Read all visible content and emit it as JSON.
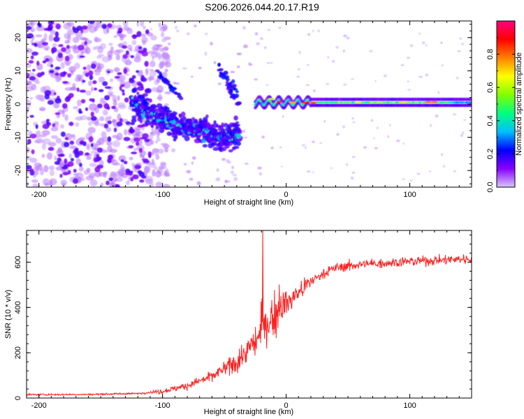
{
  "title": "S206.2026.044.20.17.R19",
  "chart_data": [
    {
      "type": "heatmap",
      "xlabel": "Height of straight line (km)",
      "ylabel": "Frequency (Hz)",
      "xlim": [
        -210,
        150
      ],
      "ylim": [
        -25,
        25
      ],
      "x_ticks": [
        -200,
        -100,
        0,
        100
      ],
      "y_ticks": [
        -20,
        -10,
        0,
        10,
        20
      ],
      "colorbar": {
        "label": "Normalized spectral amplitude",
        "range": [
          0,
          1
        ],
        "ticks": [
          "0.0",
          "0.2",
          "0.4",
          "0.6",
          "0.8"
        ],
        "colors": [
          "#d8c8ff",
          "#8800ff",
          "#0000ff",
          "#00c0ff",
          "#00ff80",
          "#80ff00",
          "#ffff00",
          "#ff8000",
          "#ff0000",
          "#ff0080"
        ]
      },
      "features": {
        "noise_region_km": [
          -210,
          -110
        ],
        "descending_trace": {
          "x": [
            -125,
            -110,
            -90,
            -70,
            -50,
            -38
          ],
          "y": [
            1,
            -3,
            -6,
            -8,
            -10,
            -9
          ]
        },
        "steady_line": {
          "x_start": -25,
          "x_end": 150,
          "frequency_hz": 0.5
        }
      }
    },
    {
      "type": "line",
      "xlabel": "Height of straight line (km)",
      "ylabel": "SNR (10 * v/v)",
      "xlim": [
        -210,
        150
      ],
      "ylim": [
        0,
        740
      ],
      "x_ticks": [
        -200,
        -100,
        0,
        100
      ],
      "y_ticks": [
        0,
        200,
        400,
        600
      ],
      "color": "#ff2020",
      "spike": {
        "x": -19,
        "y": 740
      },
      "trend": {
        "x": [
          -210,
          -160,
          -120,
          -100,
          -80,
          -60,
          -40,
          -30,
          -20,
          -10,
          0,
          10,
          20,
          30,
          40,
          60,
          80,
          100,
          120,
          150
        ],
        "y": [
          15,
          16,
          20,
          30,
          55,
          95,
          160,
          215,
          290,
          360,
          420,
          465,
          515,
          550,
          575,
          590,
          597,
          603,
          608,
          615
        ]
      }
    }
  ]
}
